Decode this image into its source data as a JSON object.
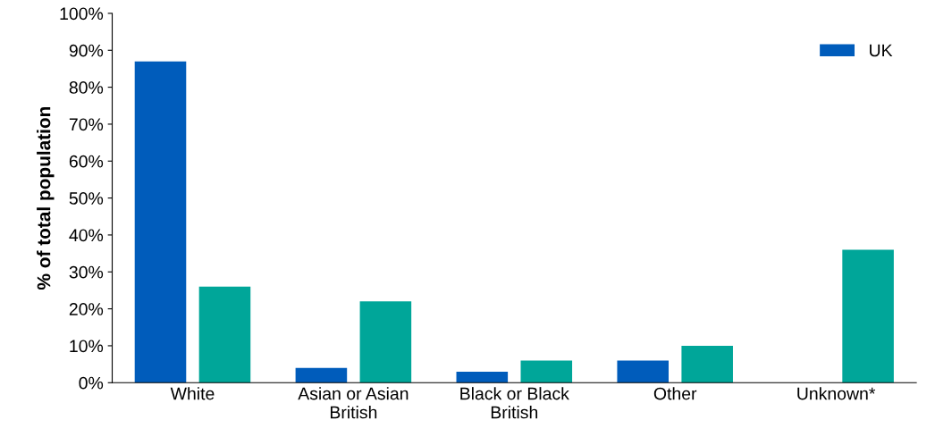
{
  "chart_data": {
    "type": "bar",
    "ylabel": "% of total population",
    "categories": [
      "White",
      "Asian or Asian\nBritish",
      "Black or Black\nBritish",
      "Other",
      "Unknown*"
    ],
    "series": [
      {
        "name": "UK",
        "color": "#005cbb",
        "values": [
          87,
          4,
          3,
          6,
          null
        ]
      },
      {
        "color": "#00a699",
        "values": [
          26,
          22,
          6,
          10,
          36
        ]
      }
    ],
    "ylim": [
      0,
      100
    ],
    "yticks": [
      {
        "value": 0,
        "label": "0%"
      },
      {
        "value": 10,
        "label": "10%"
      },
      {
        "value": 20,
        "label": "20%"
      },
      {
        "value": 30,
        "label": "30%"
      },
      {
        "value": 40,
        "label": "40%"
      },
      {
        "value": 50,
        "label": "50%"
      },
      {
        "value": 60,
        "label": "60%"
      },
      {
        "value": 70,
        "label": "70%"
      },
      {
        "value": 80,
        "label": "80%"
      },
      {
        "value": 90,
        "label": "90%"
      },
      {
        "value": 100,
        "label": "100%"
      }
    ],
    "grid": false,
    "legend": "top right"
  }
}
